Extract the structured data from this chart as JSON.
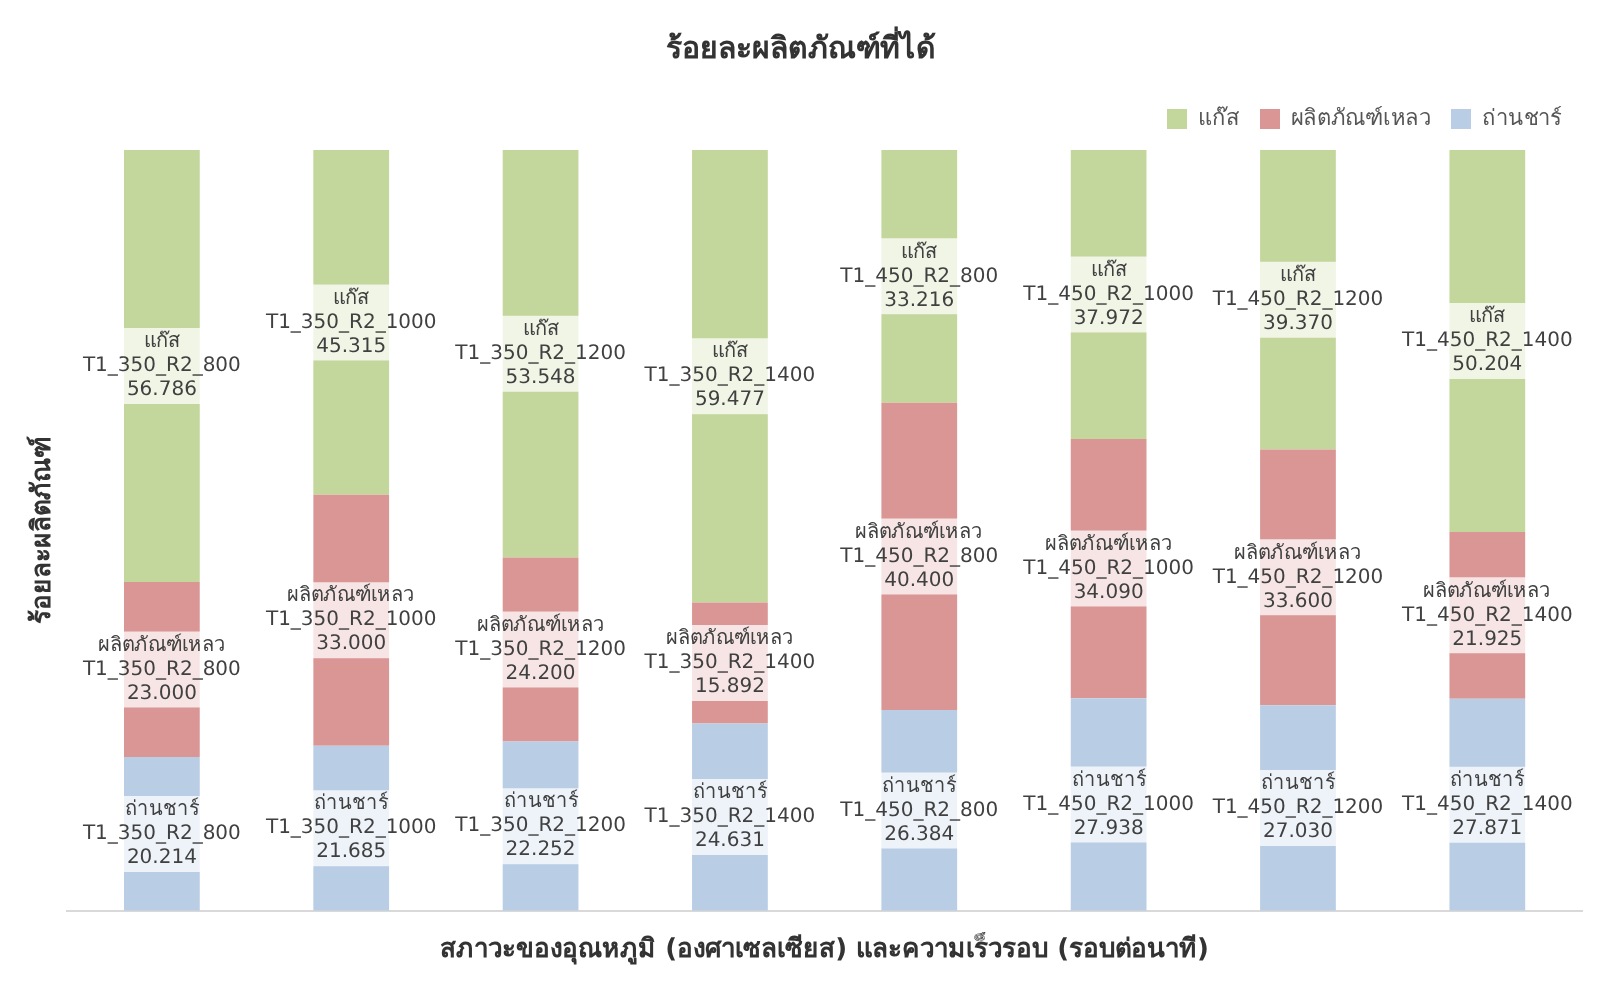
{
  "chart_data": {
    "type": "bar",
    "stacked": true,
    "title": "ร้อยละผลิตภัณฑ์ที่ได้",
    "xlabel": "สภาวะของอุณหภูมิ (องศาเซลเซียส) และความเร็วรอบ (รอบต่อนาที)",
    "ylabel": "ร้อยละผลิตภัณฑ์",
    "categories": [
      "T1_350_R2_800",
      "T1_350_R2_1000",
      "T1_350_R2_1200",
      "T1_350_R2_1400",
      "T1_450_R2_800",
      "T1_450_R2_1000",
      "T1_450_R2_1200",
      "T1_450_R2_1400"
    ],
    "series": [
      {
        "name": "ถ่านชาร์",
        "color": "#b9cde5",
        "values": [
          20.214,
          21.685,
          22.252,
          24.631,
          26.384,
          27.938,
          27.03,
          27.871
        ],
        "value_labels": [
          "20.214",
          "21.685",
          "22.252",
          "24.631",
          "26.384",
          "27.938",
          "27.030",
          "27.871"
        ]
      },
      {
        "name": "ผลิตภัณฑ์เหลว",
        "color": "#d99694",
        "values": [
          23.0,
          33.0,
          24.2,
          15.892,
          40.4,
          34.09,
          33.6,
          21.925
        ],
        "value_labels": [
          "23.000",
          "33.000",
          "24.200",
          "15.892",
          "40.400",
          "34.090",
          "33.600",
          "21.925"
        ]
      },
      {
        "name": "แก๊ส",
        "color": "#c3d69b",
        "values": [
          56.786,
          45.315,
          53.548,
          59.477,
          33.216,
          37.972,
          39.37,
          50.204
        ],
        "value_labels": [
          "56.786",
          "45.315",
          "53.548",
          "59.477",
          "33.216",
          "37.972",
          "39.370",
          "50.204"
        ]
      }
    ],
    "ylim": [
      0,
      100
    ],
    "tick_labels": false,
    "grid": false,
    "legend": "top right"
  }
}
